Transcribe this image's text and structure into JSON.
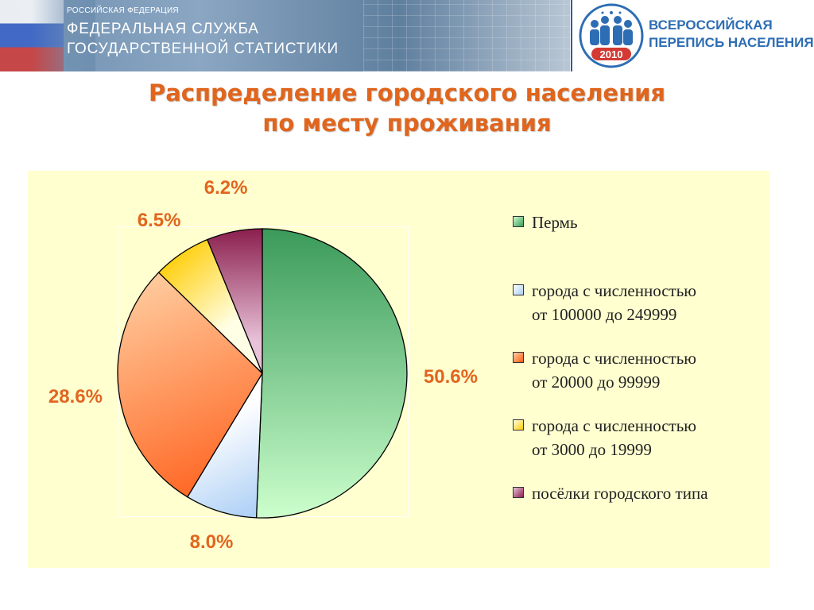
{
  "header": {
    "org_small": "РОССИЙСКАЯ ФЕДЕРАЦИЯ",
    "org_line1": "ФЕДЕРАЛЬНАЯ СЛУЖБА",
    "org_line2": "ГОСУДАРСТВЕННОЙ СТАТИСТИКИ",
    "census_line1": "ВСЕРОССИЙСКАЯ",
    "census_line2": "ПЕРЕПИСЬ НАСЕЛЕНИЯ",
    "census_year": "2010"
  },
  "slide": {
    "title_line1": "Распределение городского населения",
    "title_line2": "по месту проживания"
  },
  "colors": {
    "title": "#e0651d",
    "data_label": "#e2651e",
    "panel_bg": "#ffffd0",
    "census_blue": "#2d6db4"
  },
  "chart_data": {
    "type": "pie",
    "title": "Распределение городского населения по месту проживания",
    "legend_position": "right",
    "slices": [
      {
        "label": "Пермь",
        "value": 50.6,
        "display": "50.6%",
        "color_light": "#ccffcc",
        "color_dark": "#3a9a5a"
      },
      {
        "label": "города с численностью\nот 100000 до 249999",
        "value": 8.0,
        "display": "8.0%",
        "color_light": "#ffffff",
        "color_dark": "#a9cdf5"
      },
      {
        "label": "города с численностью\nот 20000 до 99999",
        "value": 28.6,
        "display": "28.6%",
        "color_light": "#ffd2a6",
        "color_dark": "#ff5a14"
      },
      {
        "label": "города с численностью\nот 3000 до 19999",
        "value": 6.5,
        "display": "6.5%",
        "color_light": "#ffffe6",
        "color_dark": "#ffcc00"
      },
      {
        "label": "посёлки городского типа",
        "value": 6.2,
        "display": "6.2%",
        "color_light": "#e8c2d8",
        "color_dark": "#8b1f4e"
      }
    ]
  }
}
